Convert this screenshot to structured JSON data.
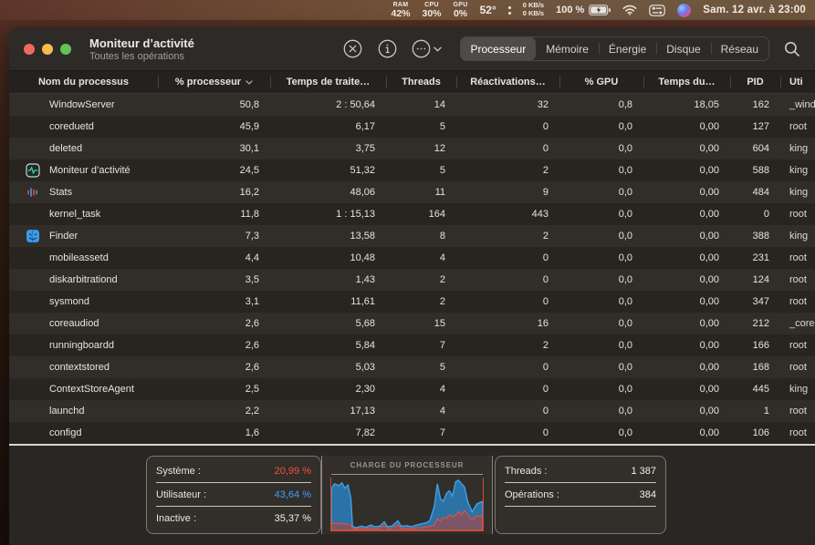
{
  "menu_bar": {
    "modules": [
      {
        "label": "RAM",
        "value": "42%"
      },
      {
        "label": "CPU",
        "value": "30%"
      },
      {
        "label": "GPU",
        "value": "0%"
      }
    ],
    "temperature": "52°",
    "network_up": "0 KB/s",
    "network_down": "0 KB/s",
    "battery_percent": "100 %",
    "clock": "Sam. 12 avr. à 23:00"
  },
  "window": {
    "title": "Moniteur d’activité",
    "subtitle": "Toutes les opérations",
    "tabs": [
      {
        "label": "Processeur",
        "selected": true
      },
      {
        "label": "Mémoire",
        "selected": false
      },
      {
        "label": "Énergie",
        "selected": false
      },
      {
        "label": "Disque",
        "selected": false
      },
      {
        "label": "Réseau",
        "selected": false
      }
    ]
  },
  "table": {
    "columns": [
      {
        "label": "Nom du processus"
      },
      {
        "label": "% processeur",
        "sorted": "desc"
      },
      {
        "label": "Temps de traite…"
      },
      {
        "label": "Threads"
      },
      {
        "label": "Réactivations…"
      },
      {
        "label": "% GPU"
      },
      {
        "label": "Temps du…"
      },
      {
        "label": "PID"
      },
      {
        "label": "Uti"
      }
    ],
    "rows": [
      {
        "name": "WindowServer",
        "icon": null,
        "cpu": "50,8",
        "cpu_time": "2 : 50,64",
        "threads": "14",
        "wakeups": "32",
        "gpu": "0,8",
        "gpu_time": "18,05",
        "pid": "162",
        "user": "_wind"
      },
      {
        "name": "coreduetd",
        "icon": null,
        "cpu": "45,9",
        "cpu_time": "6,17",
        "threads": "5",
        "wakeups": "0",
        "gpu": "0,0",
        "gpu_time": "0,00",
        "pid": "127",
        "user": "root"
      },
      {
        "name": "deleted",
        "icon": null,
        "cpu": "30,1",
        "cpu_time": "3,75",
        "threads": "12",
        "wakeups": "0",
        "gpu": "0,0",
        "gpu_time": "0,00",
        "pid": "604",
        "user": "king"
      },
      {
        "name": "Moniteur d’activité",
        "icon": "activity-monitor-icon",
        "cpu": "24,5",
        "cpu_time": "51,32",
        "threads": "5",
        "wakeups": "2",
        "gpu": "0,0",
        "gpu_time": "0,00",
        "pid": "588",
        "user": "king"
      },
      {
        "name": "Stats",
        "icon": "stats-icon",
        "cpu": "16,2",
        "cpu_time": "48,06",
        "threads": "11",
        "wakeups": "9",
        "gpu": "0,0",
        "gpu_time": "0,00",
        "pid": "484",
        "user": "king"
      },
      {
        "name": "kernel_task",
        "icon": null,
        "cpu": "11,8",
        "cpu_time": "1 : 15,13",
        "threads": "164",
        "wakeups": "443",
        "gpu": "0,0",
        "gpu_time": "0,00",
        "pid": "0",
        "user": "root"
      },
      {
        "name": "Finder",
        "icon": "finder-icon",
        "cpu": "7,3",
        "cpu_time": "13,58",
        "threads": "8",
        "wakeups": "2",
        "gpu": "0,0",
        "gpu_time": "0,00",
        "pid": "388",
        "user": "king"
      },
      {
        "name": "mobileassetd",
        "icon": null,
        "cpu": "4,4",
        "cpu_time": "10,48",
        "threads": "4",
        "wakeups": "0",
        "gpu": "0,0",
        "gpu_time": "0,00",
        "pid": "231",
        "user": "root"
      },
      {
        "name": "diskarbitrationd",
        "icon": null,
        "cpu": "3,5",
        "cpu_time": "1,43",
        "threads": "2",
        "wakeups": "0",
        "gpu": "0,0",
        "gpu_time": "0,00",
        "pid": "124",
        "user": "root"
      },
      {
        "name": "sysmond",
        "icon": null,
        "cpu": "3,1",
        "cpu_time": "11,61",
        "threads": "2",
        "wakeups": "0",
        "gpu": "0,0",
        "gpu_time": "0,00",
        "pid": "347",
        "user": "root"
      },
      {
        "name": "coreaudiod",
        "icon": null,
        "cpu": "2,6",
        "cpu_time": "5,68",
        "threads": "15",
        "wakeups": "16",
        "gpu": "0,0",
        "gpu_time": "0,00",
        "pid": "212",
        "user": "_core"
      },
      {
        "name": "runningboardd",
        "icon": null,
        "cpu": "2,6",
        "cpu_time": "5,84",
        "threads": "7",
        "wakeups": "2",
        "gpu": "0,0",
        "gpu_time": "0,00",
        "pid": "166",
        "user": "root"
      },
      {
        "name": "contextstored",
        "icon": null,
        "cpu": "2,6",
        "cpu_time": "5,03",
        "threads": "5",
        "wakeups": "0",
        "gpu": "0,0",
        "gpu_time": "0,00",
        "pid": "168",
        "user": "root"
      },
      {
        "name": "ContextStoreAgent",
        "icon": null,
        "cpu": "2,5",
        "cpu_time": "2,30",
        "threads": "4",
        "wakeups": "0",
        "gpu": "0,0",
        "gpu_time": "0,00",
        "pid": "445",
        "user": "king"
      },
      {
        "name": "launchd",
        "icon": null,
        "cpu": "2,2",
        "cpu_time": "17,13",
        "threads": "4",
        "wakeups": "0",
        "gpu": "0,0",
        "gpu_time": "0,00",
        "pid": "1",
        "user": "root"
      },
      {
        "name": "configd",
        "icon": null,
        "cpu": "1,6",
        "cpu_time": "7,82",
        "threads": "7",
        "wakeups": "0",
        "gpu": "0,0",
        "gpu_time": "0,00",
        "pid": "106",
        "user": "root"
      }
    ]
  },
  "footer": {
    "stats_left": [
      {
        "label": "Système :",
        "value": "20,99 %",
        "color": "#fb4f43"
      },
      {
        "label": "Utilisateur :",
        "value": "43,64 %",
        "color": "#3da2f8"
      },
      {
        "label": "Inactive :",
        "value": "35,37 %",
        "color": "#f2efec"
      }
    ],
    "chart_title": "CHARGE DU PROCESSEUR",
    "stats_right": [
      {
        "label": "Threads :",
        "value": "1 387"
      },
      {
        "label": "Opérations :",
        "value": "384"
      }
    ]
  },
  "chart_data": {
    "type": "area",
    "title": "CHARGE DU PROCESSEUR",
    "ylim": [
      0,
      100
    ],
    "grid": false,
    "x": [
      0,
      2,
      5,
      7,
      9,
      11,
      13,
      14,
      16,
      20,
      23,
      26,
      29,
      32,
      35,
      37,
      40,
      44,
      46,
      50,
      53,
      56,
      59,
      62,
      65,
      68,
      70,
      72,
      74,
      76,
      78,
      80,
      82,
      84,
      86,
      88,
      90,
      93,
      96,
      100
    ],
    "series": [
      {
        "name": "Utilisateur",
        "stroke": "#3fa0e8",
        "fill": "#2a7db8",
        "values": [
          78,
          88,
          85,
          90,
          80,
          86,
          60,
          8,
          5,
          8,
          6,
          10,
          7,
          8,
          16,
          7,
          8,
          18,
          8,
          9,
          7,
          10,
          12,
          14,
          18,
          45,
          88,
          60,
          55,
          70,
          75,
          65,
          92,
          95,
          88,
          82,
          55,
          35,
          50,
          55
        ]
      },
      {
        "name": "Système",
        "stroke": "#e0503c",
        "fill": "#c03c34",
        "values": [
          14,
          13,
          13,
          13,
          12,
          12,
          10,
          4,
          3,
          4,
          3,
          5,
          3,
          4,
          9,
          3,
          4,
          10,
          4,
          4,
          3,
          5,
          5,
          6,
          8,
          10,
          22,
          18,
          25,
          22,
          30,
          26,
          28,
          35,
          30,
          38,
          30,
          20,
          28,
          26
        ]
      }
    ]
  }
}
